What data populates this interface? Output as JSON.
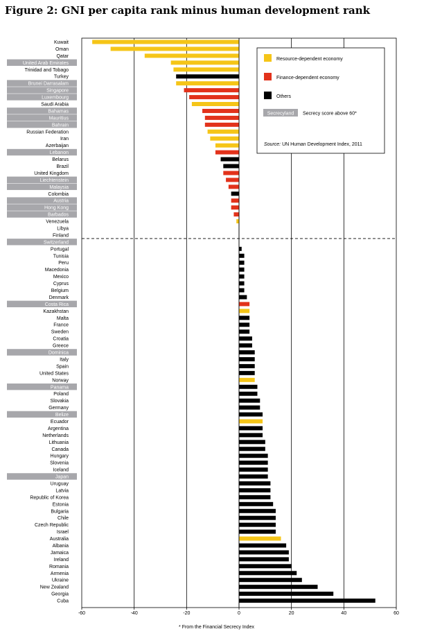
{
  "page": {
    "title": "Figure 2: GNI per capita rank minus human development rank",
    "footnote": "* From the Financial Secrecy Index"
  },
  "legend": {
    "items": [
      {
        "label": "Resource-dependent economy",
        "color": "#f5c518"
      },
      {
        "label": "Finance-dependent economy",
        "color": "#e2321b"
      },
      {
        "label": "Others",
        "color": "#000000"
      },
      {
        "label": "Secrecy score above 60*",
        "swatch_text": "Secrecyland",
        "color": "#a7a7ab"
      }
    ],
    "source_prefix": "Source:",
    "source_text": " UN Human Development Index, 2011"
  },
  "chart_data": {
    "type": "bar",
    "orientation": "horizontal",
    "title": "Figure 2: GNI per capita rank minus human development rank",
    "xlim": [
      -60,
      60
    ],
    "xticks": [
      -60,
      -40,
      -20,
      0,
      20,
      40,
      60
    ],
    "grid": true,
    "legend_position": "top-right",
    "colors": {
      "resource": "#f5c518",
      "finance": "#e2321b",
      "other": "#000000",
      "secrecy": "#a7a7ab"
    },
    "categories": [
      "Kuwait",
      "Oman",
      "Qatar",
      "United Arab Emirates",
      "Trinidad and Tobago",
      "Turkey",
      "Brunei Darrasalam",
      "Singapore",
      "Luxembourg",
      "Saudi Arabia",
      "Bahamas",
      "Mauritius",
      "Bahrain",
      "Russian Federation",
      "Iran",
      "Azerbaijan",
      "Lebanon",
      "Belarus",
      "Brazil",
      "United Kingdom",
      "Liechtenstein",
      "Malaysia",
      "Colombia",
      "Austria",
      "Hong Kong",
      "Barbados",
      "Venezuela",
      "Libya",
      "Finland",
      "Switzerland",
      "Portugal",
      "Tunisia",
      "Peru",
      "Macedonia",
      "Mexico",
      "Cyprus",
      "Belgium",
      "Denmark",
      "Costa Rica",
      "Kazakhstan",
      "Malta",
      "France",
      "Sweden",
      "Croatia",
      "Greece",
      "Dominica",
      "Italy",
      "Spain",
      "United States",
      "Norway",
      "Panama",
      "Poland",
      "Slovakia",
      "Germany",
      "Belize",
      "Ecuador",
      "Argentina",
      "Netherlands",
      "Lithuania",
      "Canada",
      "Hungary",
      "Slovenia",
      "Iceland",
      "Japan",
      "Uruguay",
      "Latvia",
      "Republic of Korea",
      "Estonia",
      "Bulgaria",
      "Chile",
      "Czech Republic",
      "Israel",
      "Australia",
      "Albania",
      "Jamaica",
      "Ireland",
      "Romania",
      "Armenia",
      "Ukraine",
      "New Zealand",
      "Georgia",
      "Cuba"
    ],
    "values": [
      -56,
      -49,
      -36,
      -26,
      -25,
      -24,
      -24,
      -21,
      -19,
      -18,
      -14,
      -13,
      -13,
      -12,
      -11,
      -9,
      -9,
      -7,
      -6,
      -6,
      -5,
      -4,
      -3,
      -3,
      -3,
      -2,
      -1,
      0,
      0,
      0,
      1,
      2,
      2,
      2,
      2,
      2,
      2,
      3,
      4,
      4,
      4,
      4,
      4,
      5,
      5,
      6,
      6,
      6,
      6,
      6,
      7,
      7,
      8,
      8,
      9,
      9,
      9,
      9,
      10,
      10,
      11,
      11,
      11,
      11,
      12,
      12,
      12,
      13,
      14,
      14,
      14,
      14,
      16,
      18,
      19,
      19,
      20,
      22,
      24,
      30,
      36,
      52
    ],
    "economy_type": [
      "resource",
      "resource",
      "resource",
      "resource",
      "resource",
      "other",
      "resource",
      "finance",
      "finance",
      "resource",
      "finance",
      "finance",
      "finance",
      "resource",
      "resource",
      "resource",
      "finance",
      "other",
      "other",
      "finance",
      "finance",
      "finance",
      "other",
      "finance",
      "finance",
      "finance",
      "resource",
      "other",
      "other",
      "finance",
      "other",
      "other",
      "other",
      "other",
      "other",
      "other",
      "other",
      "other",
      "finance",
      "resource",
      "other",
      "other",
      "other",
      "other",
      "other",
      "other",
      "other",
      "other",
      "other",
      "resource",
      "other",
      "other",
      "other",
      "other",
      "other",
      "resource",
      "other",
      "other",
      "other",
      "other",
      "other",
      "other",
      "other",
      "other",
      "other",
      "other",
      "other",
      "other",
      "other",
      "other",
      "other",
      "other",
      "resource",
      "other",
      "other",
      "other",
      "other",
      "other",
      "other",
      "other",
      "other",
      "other"
    ],
    "secrecy_above_60": [
      "United Arab Emirates",
      "Brunei Darrasalam",
      "Singapore",
      "Luxembourg",
      "Bahamas",
      "Mauritius",
      "Bahrain",
      "Lebanon",
      "Liechtenstein",
      "Malaysia",
      "Austria",
      "Hong Kong",
      "Barbados",
      "Switzerland",
      "Costa Rica",
      "Dominica",
      "Panama",
      "Belize",
      "Japan"
    ],
    "divider_after": "Finland"
  }
}
